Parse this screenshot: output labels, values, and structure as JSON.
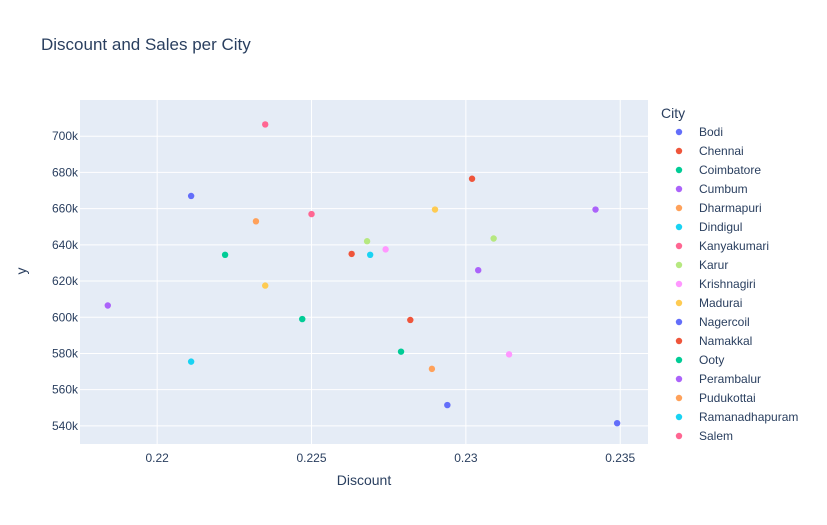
{
  "chart_data": {
    "type": "scatter",
    "title": "Discount and Sales per City",
    "xlabel": "Discount",
    "ylabel": "y",
    "xlim": [
      0.2175,
      0.2359
    ],
    "ylim": [
      530000,
      720000
    ],
    "x_ticks": [
      0.22,
      0.225,
      0.23,
      0.235
    ],
    "x_tick_labels": [
      "0.22",
      "0.225",
      "0.23",
      "0.235"
    ],
    "y_ticks": [
      540000,
      560000,
      580000,
      600000,
      620000,
      640000,
      660000,
      680000,
      700000
    ],
    "y_tick_labels": [
      "540k",
      "560k",
      "580k",
      "600k",
      "620k",
      "640k",
      "660k",
      "680k",
      "700k"
    ],
    "grid": true,
    "legend_title": "City",
    "legend_position": "right",
    "series": [
      {
        "name": "Bodi",
        "color": "#636efa",
        "points": [
          [
            0.2211,
            667000
          ],
          [
            0.2294,
            551500
          ],
          [
            0.2349,
            541500
          ]
        ]
      },
      {
        "name": "Chennai",
        "color": "#EF553B",
        "points": [
          [
            0.2302,
            676500
          ]
        ]
      },
      {
        "name": "Coimbatore",
        "color": "#00cc96",
        "points": [
          [
            0.2247,
            599000
          ]
        ]
      },
      {
        "name": "Cumbum",
        "color": "#ab63fa",
        "points": [
          [
            0.2342,
            659500
          ]
        ]
      },
      {
        "name": "Dharmapuri",
        "color": "#FFA15A",
        "points": [
          [
            0.2232,
            653000
          ]
        ]
      },
      {
        "name": "Dindigul",
        "color": "#19d3f3",
        "points": [
          [
            0.2211,
            575500
          ]
        ]
      },
      {
        "name": "Kanyakumari",
        "color": "#FF6692",
        "points": [
          [
            0.225,
            657000
          ]
        ]
      },
      {
        "name": "Karur",
        "color": "#B6E880",
        "points": [
          [
            0.2268,
            642000
          ],
          [
            0.2309,
            643500
          ]
        ]
      },
      {
        "name": "Krishnagiri",
        "color": "#FF97FF",
        "points": [
          [
            0.2274,
            637500
          ],
          [
            0.2314,
            579500
          ]
        ]
      },
      {
        "name": "Madurai",
        "color": "#FECB52",
        "points": [
          [
            0.229,
            659500
          ],
          [
            0.2235,
            617500
          ]
        ]
      },
      {
        "name": "Nagercoil",
        "color": "#636efa",
        "points": []
      },
      {
        "name": "Namakkal",
        "color": "#EF553B",
        "points": [
          [
            0.2263,
            635000
          ],
          [
            0.2282,
            598500
          ]
        ]
      },
      {
        "name": "Ooty",
        "color": "#00cc96",
        "points": [
          [
            0.2222,
            634500
          ],
          [
            0.2279,
            581000
          ]
        ]
      },
      {
        "name": "Perambalur",
        "color": "#ab63fa",
        "points": [
          [
            0.2184,
            606500
          ],
          [
            0.2304,
            626000
          ]
        ]
      },
      {
        "name": "Pudukottai",
        "color": "#FFA15A",
        "points": [
          [
            0.2289,
            571500
          ]
        ]
      },
      {
        "name": "Ramanadhapuram",
        "color": "#19d3f3",
        "points": [
          [
            0.2269,
            634500
          ]
        ]
      },
      {
        "name": "Salem",
        "color": "#FF6692",
        "points": [
          [
            0.2235,
            706500
          ]
        ]
      }
    ]
  }
}
